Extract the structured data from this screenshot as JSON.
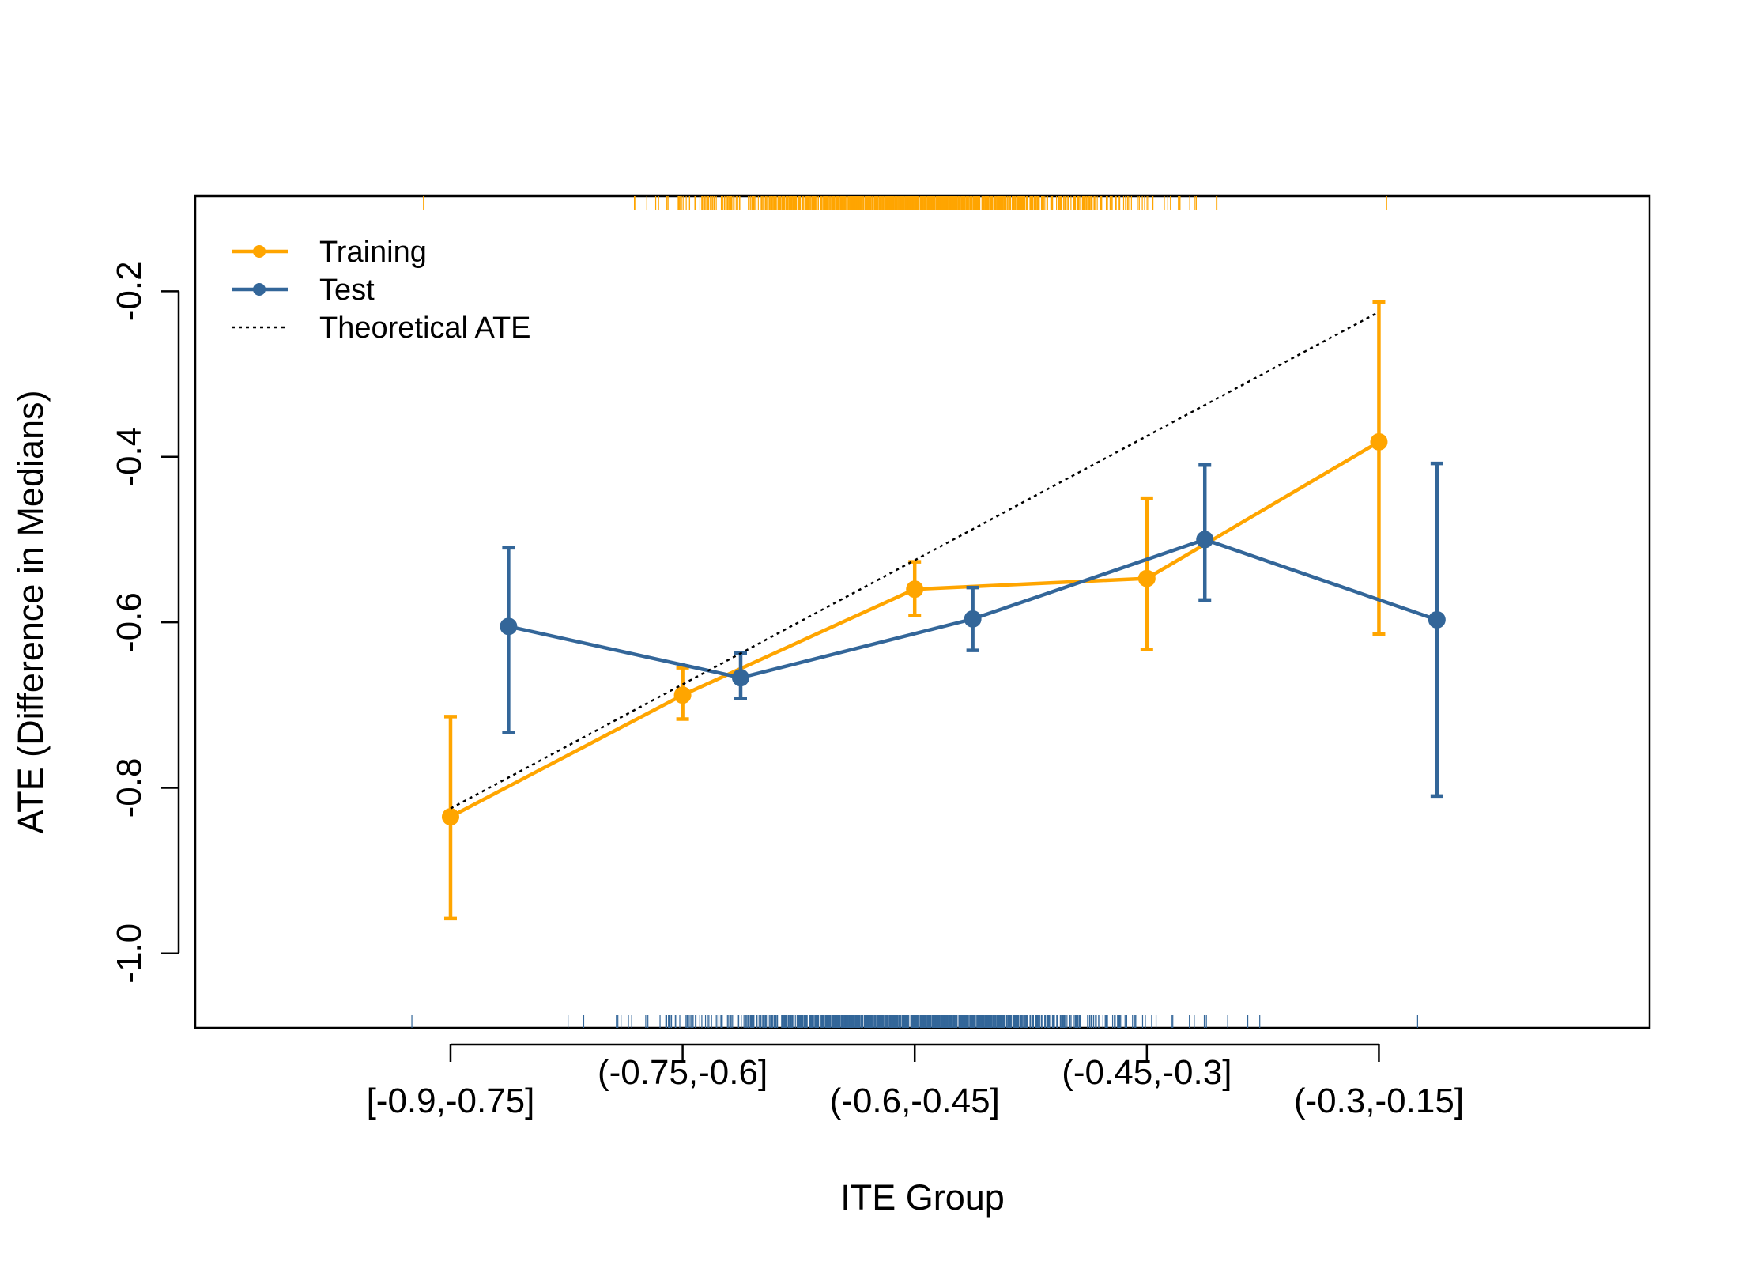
{
  "chart_data": {
    "type": "line",
    "xlabel": "ITE Group",
    "ylabel": "ATE (Difference in Medians)",
    "categories": [
      "[-0.9,-0.75]",
      "(-0.75,-0.6]",
      "(-0.6,-0.45]",
      "(-0.45,-0.3]",
      "(-0.3,-0.15]"
    ],
    "ylim": [
      -1.09,
      -0.085
    ],
    "yticks": [
      "-1.0",
      "-0.8",
      "-0.6",
      "-0.4",
      "-0.2"
    ],
    "series": [
      {
        "name": "Training",
        "color": "#FFA500",
        "x": [
          -0.9,
          -0.6,
          -0.3,
          0,
          0.3
        ],
        "values": [
          -0.835,
          -0.688,
          -0.56,
          -0.547,
          -0.382
        ],
        "lower": [
          -0.958,
          -0.717,
          -0.592,
          -0.633,
          -0.614
        ],
        "upper": [
          -0.714,
          -0.655,
          -0.527,
          -0.45,
          -0.213
        ]
      },
      {
        "name": "Test",
        "color": "#336699",
        "x": [
          -0.825,
          -0.525,
          -0.225,
          0.075,
          0.375
        ],
        "values": [
          -0.605,
          -0.667,
          -0.596,
          -0.5,
          -0.597
        ],
        "lower": [
          -0.733,
          -0.692,
          -0.634,
          -0.573,
          -0.81
        ],
        "upper": [
          -0.51,
          -0.637,
          -0.558,
          -0.41,
          -0.408
        ]
      },
      {
        "name": "Theoretical ATE",
        "color": "#000000",
        "dashed": true,
        "x": [
          -0.9,
          0.3
        ],
        "values": [
          -0.825,
          -0.225
        ]
      }
    ],
    "legend": {
      "position": "top-left"
    },
    "rug": {
      "training_range": [
        -0.935,
        0.31
      ],
      "test_range": [
        -0.95,
        0.35
      ]
    },
    "grid": false
  }
}
